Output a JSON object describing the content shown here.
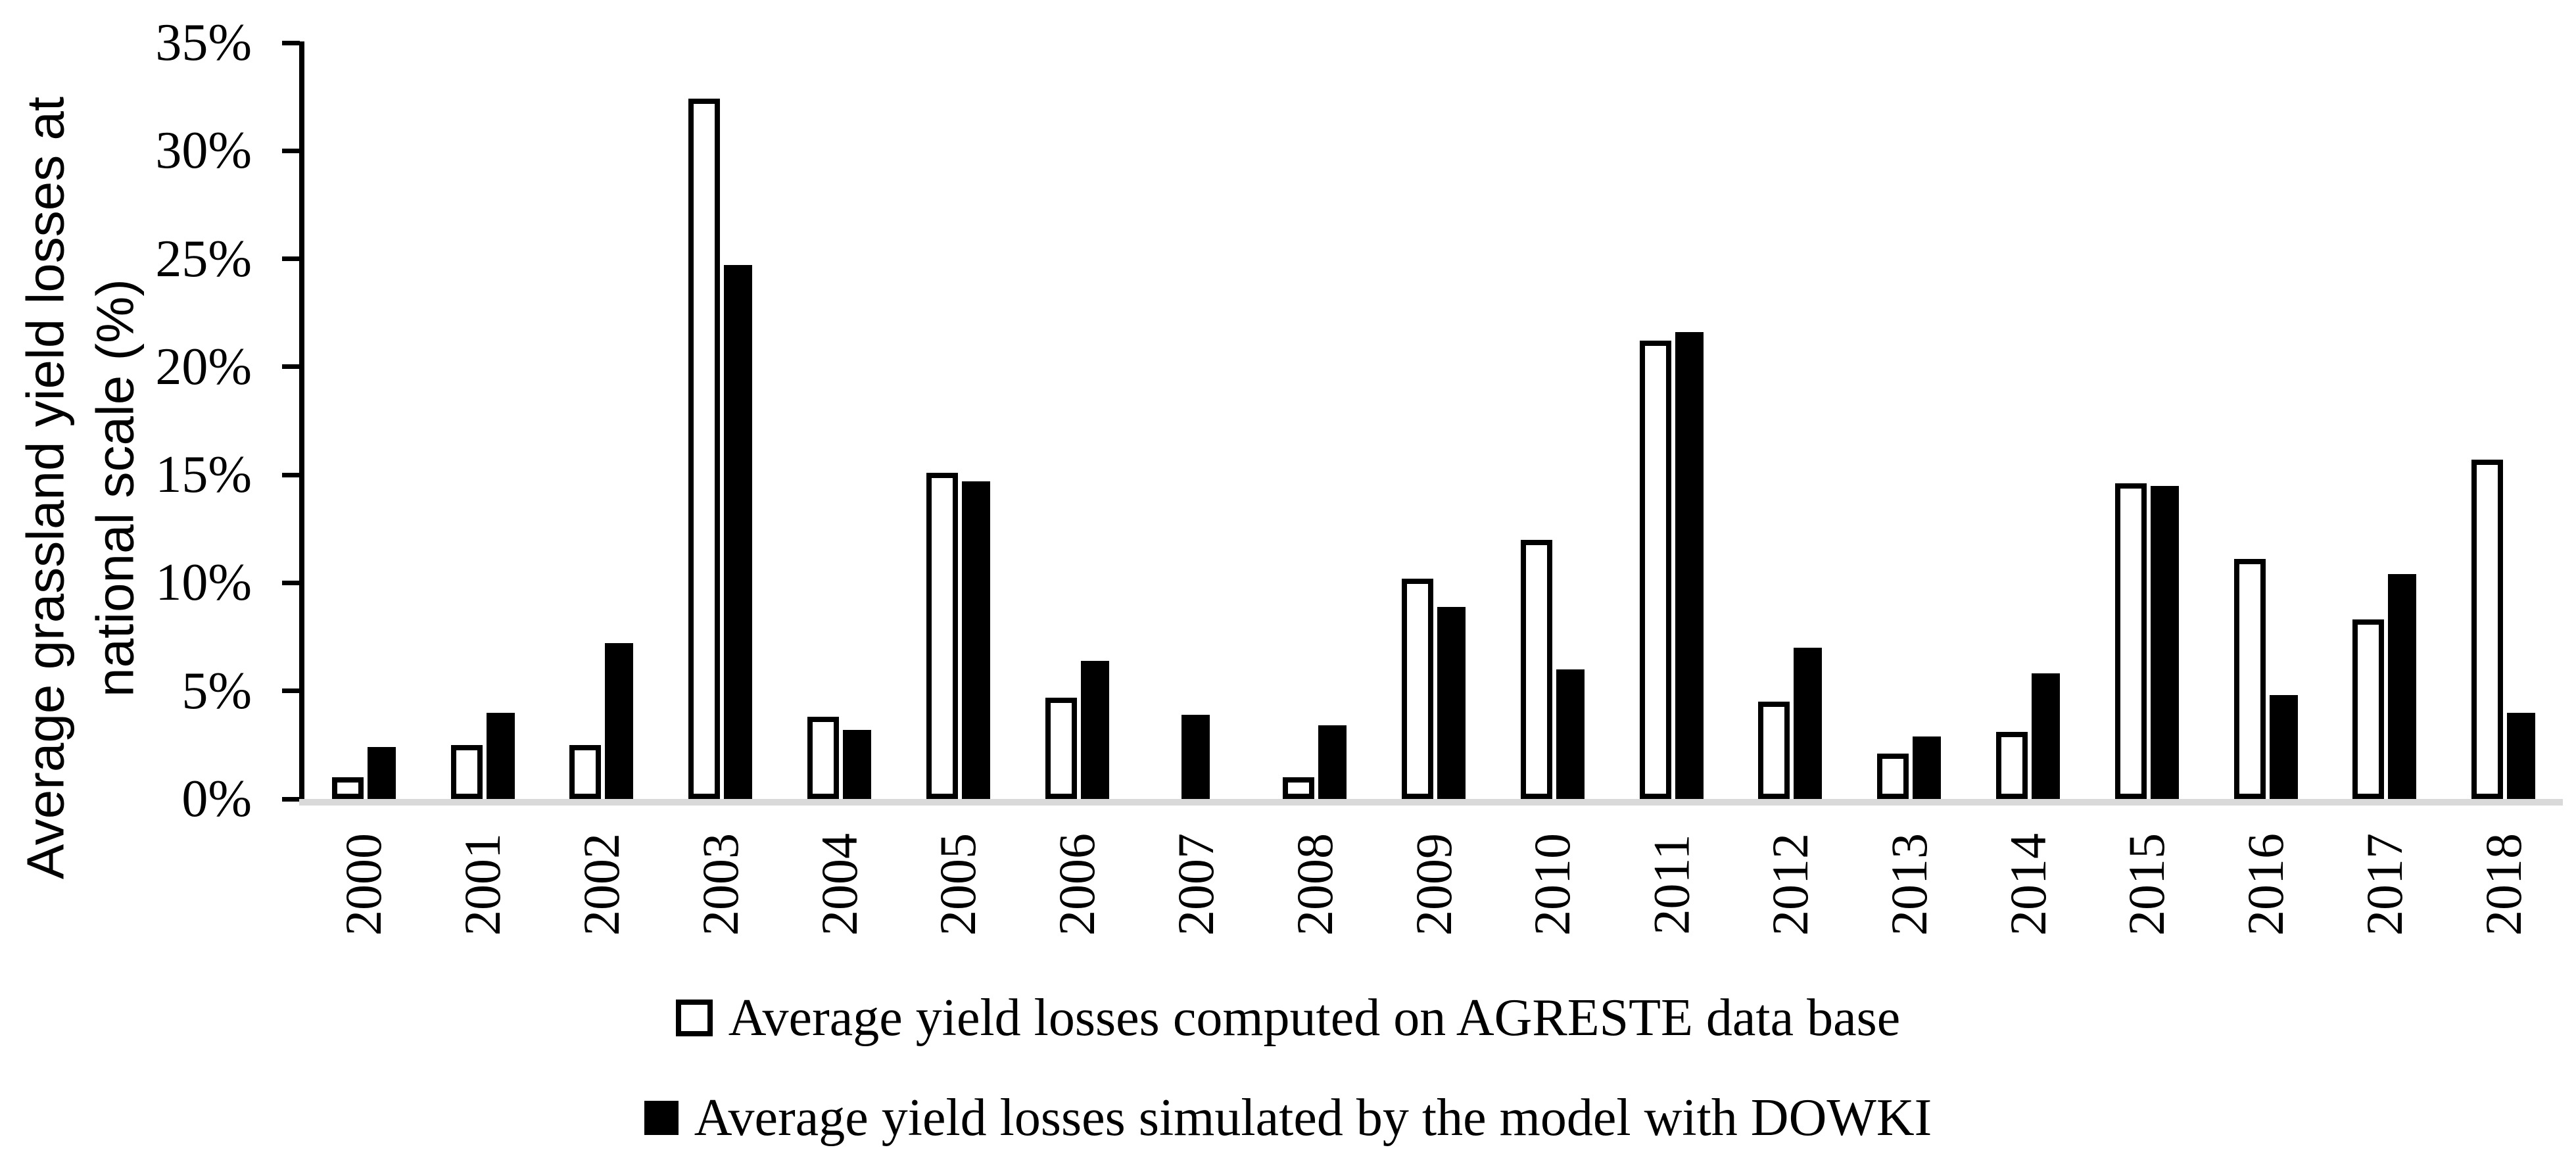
{
  "figure": {
    "background": "#ffffff",
    "axis_color": "#000000",
    "baseline_color": "#d9d9d9"
  },
  "chart_data": {
    "type": "bar",
    "title": "",
    "ylabel": "Average grassland yield losses at national scale (%)",
    "ylabel_lines": {
      "line1": "Average grassland yield losses at",
      "line2": "national scale (%)"
    },
    "xlabel": "",
    "categories": [
      "2000",
      "2001",
      "2002",
      "2003",
      "2004",
      "2005",
      "2006",
      "2007",
      "2008",
      "2009",
      "2010",
      "2011",
      "2012",
      "2013",
      "2014",
      "2015",
      "2016",
      "2017",
      "2018"
    ],
    "series": [
      {
        "name": "Average yield losses computed on AGRESTE data base",
        "style": "white-outlined",
        "fill": "#ffffff",
        "border": "#000000",
        "values": [
          1.0,
          2.5,
          2.5,
          32.4,
          3.8,
          15.1,
          4.7,
          0,
          1.0,
          10.2,
          12.0,
          21.2,
          4.5,
          2.1,
          3.1,
          14.6,
          11.1,
          8.3,
          15.7
        ]
      },
      {
        "name": "Average yield losses simulated by the model with DOWKI",
        "style": "black-solid",
        "fill": "#000000",
        "values": [
          2.4,
          4.0,
          7.2,
          24.7,
          3.2,
          14.7,
          6.4,
          3.9,
          3.4,
          8.9,
          6.0,
          21.6,
          7.0,
          2.9,
          5.8,
          14.5,
          4.8,
          10.4,
          4.0
        ]
      }
    ],
    "ylim": [
      0,
      35
    ],
    "ytick_step": 5,
    "yticks": [
      "0%",
      "5%",
      "10%",
      "15%",
      "20%",
      "25%",
      "30%",
      "35%"
    ],
    "grid": false,
    "legend_position": "bottom"
  },
  "legend": {
    "items": [
      {
        "label": "Average yield losses computed on AGRESTE data base",
        "marker": "white-square"
      },
      {
        "label": "Average yield losses simulated by the model with DOWKI",
        "marker": "black-square"
      }
    ]
  }
}
